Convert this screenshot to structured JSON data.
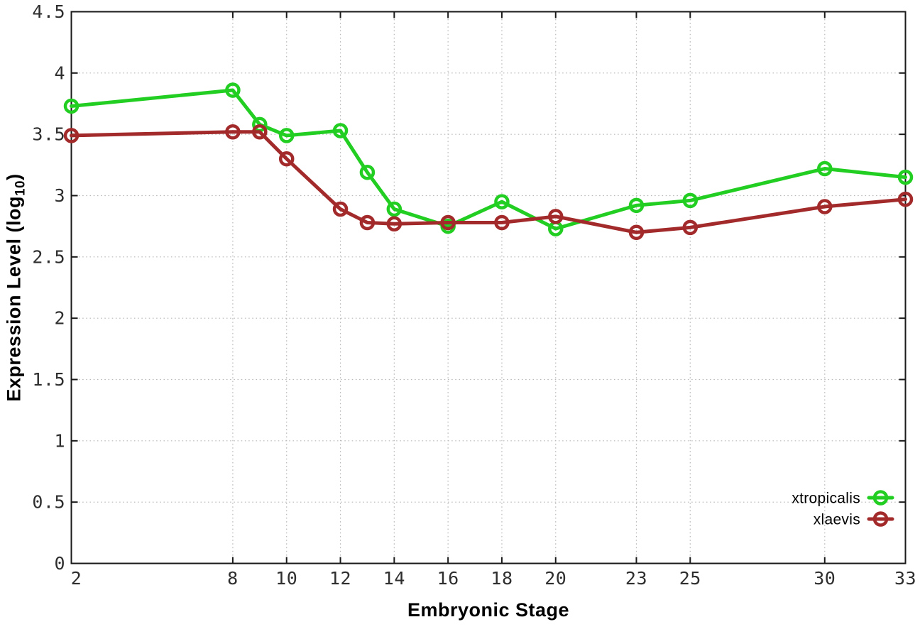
{
  "chart_data": {
    "type": "line",
    "title": "",
    "xlabel": "Embryonic Stage",
    "ylabel": "Expression Level (log10)",
    "ylabel_parts": {
      "prefix": "Expression Level (log",
      "subscript": "10",
      "suffix": ")"
    },
    "xlim": [
      2,
      33
    ],
    "ylim": [
      0,
      4.5
    ],
    "x_ticks": [
      2,
      8,
      10,
      12,
      14,
      16,
      18,
      20,
      23,
      25,
      30,
      33
    ],
    "y_ticks": [
      0,
      0.5,
      1,
      1.5,
      2,
      2.5,
      3,
      3.5,
      4,
      4.5
    ],
    "grid": true,
    "legend_position": "bottom-right-inside",
    "marker": "open-circle",
    "x": [
      2,
      8,
      9,
      10,
      12,
      13,
      14,
      16,
      18,
      20,
      23,
      25,
      30,
      33
    ],
    "series": [
      {
        "name": "xtropicalis",
        "color": "#22CE22",
        "values": [
          3.73,
          3.86,
          3.58,
          3.49,
          3.53,
          3.19,
          2.89,
          2.75,
          2.95,
          2.73,
          2.92,
          2.96,
          3.22,
          3.15
        ]
      },
      {
        "name": "xlaevis",
        "color": "#A32A2A",
        "values": [
          3.49,
          3.52,
          3.52,
          3.3,
          2.89,
          2.78,
          2.77,
          2.78,
          2.78,
          2.83,
          2.7,
          2.74,
          2.91,
          2.97
        ]
      }
    ]
  },
  "colors": {
    "axis": "#1a1a1a",
    "grid": "#b8b8b8",
    "tick_label": "#2e2e2e"
  }
}
